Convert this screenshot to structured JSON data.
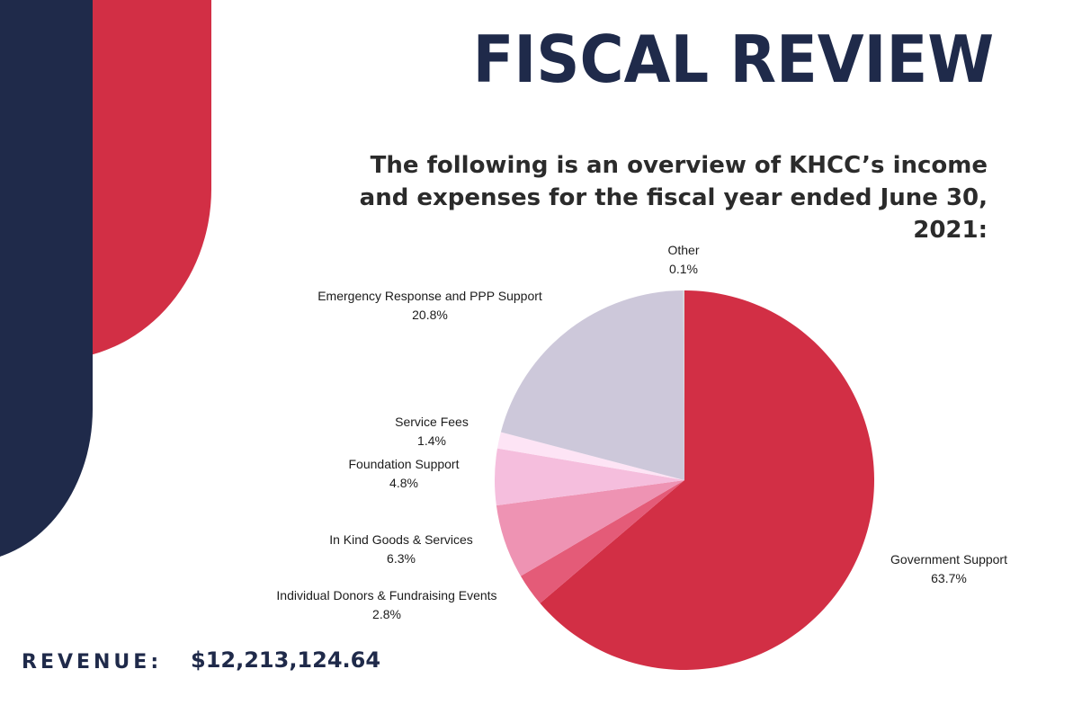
{
  "title": "FISCAL REVIEW",
  "subtitle": "The following is an overview of KHCC’s income and expenses for the fiscal year ended June 30, 2021:",
  "revenue": {
    "label": "REVENUE:",
    "value": "$12,213,124.64"
  },
  "colors": {
    "navy": "#1f2a4a",
    "red": "#d22f45"
  },
  "chart_data": {
    "type": "pie",
    "slices": [
      {
        "label": "Government Support",
        "value": 63.7,
        "display": "63.7%",
        "color": "#d22f45"
      },
      {
        "label": "Individual Donors & Fundraising Events",
        "value": 2.8,
        "display": "2.8%",
        "color": "#e45b78"
      },
      {
        "label": "In Kind Goods & Services",
        "value": 6.3,
        "display": "6.3%",
        "color": "#ee93b3"
      },
      {
        "label": "Foundation Support",
        "value": 4.8,
        "display": "4.8%",
        "color": "#f5bedd"
      },
      {
        "label": "Service Fees",
        "value": 1.4,
        "display": "1.4%",
        "color": "#fde4f5"
      },
      {
        "label": "Emergency Response and PPP Support",
        "value": 20.8,
        "display": "20.8%",
        "color": "#cdc8da"
      },
      {
        "label": "Other",
        "value": 0.1,
        "display": "0.1%",
        "color": "#d9d9d9"
      }
    ],
    "start": "12 o'clock",
    "direction": "clockwise",
    "legend": "none"
  }
}
